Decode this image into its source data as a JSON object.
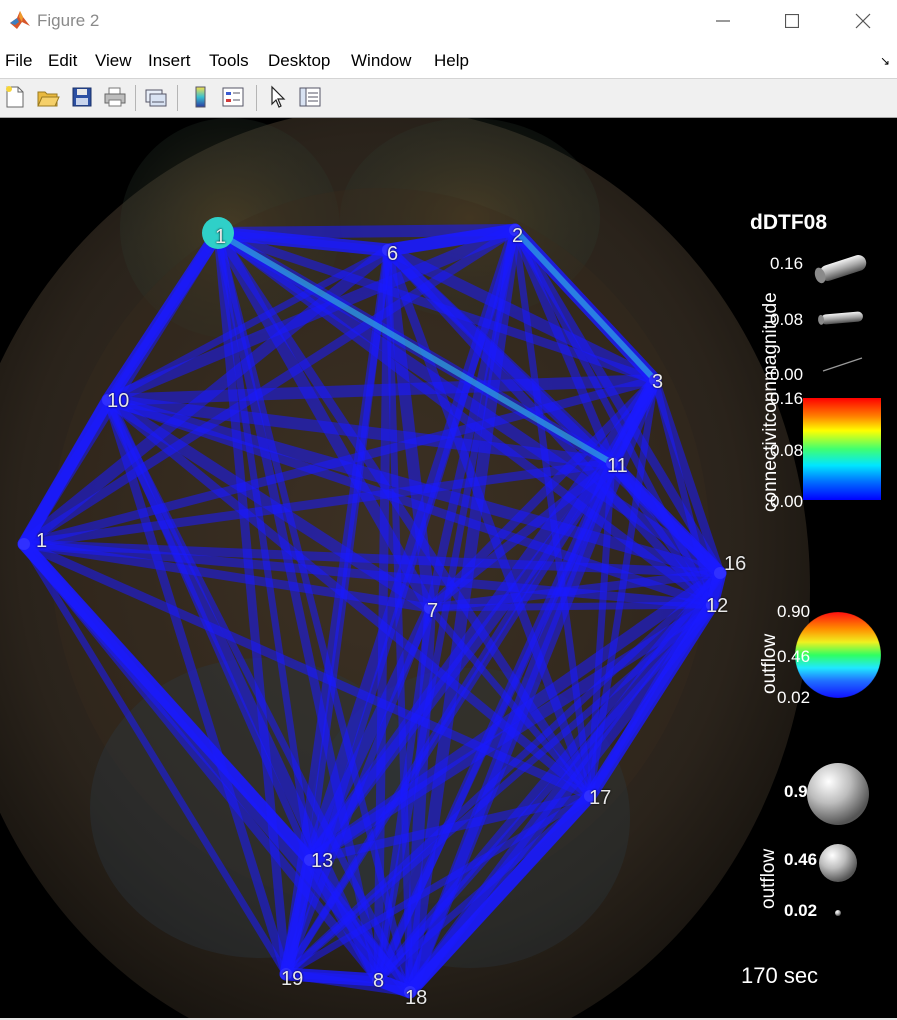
{
  "window": {
    "title": "Figure 2",
    "minimize_icon": "minimize-icon",
    "maximize_icon": "maximize-icon",
    "close_icon": "close-icon"
  },
  "menu": {
    "items": [
      "File",
      "Edit",
      "View",
      "Insert",
      "Tools",
      "Desktop",
      "Window",
      "Help"
    ]
  },
  "toolbar": {
    "tools": [
      "new-figure-icon",
      "open-file-icon",
      "save-icon",
      "print-icon",
      "link-plot-icon",
      "colorbar-icon",
      "legend-icon",
      "pointer-icon",
      "property-inspector-icon"
    ]
  },
  "figure": {
    "background": "#000000",
    "edge_color": "#1a1aff",
    "highlight_edge_color": "#2fa8e0",
    "highlight_node_color": "#2fd0c8",
    "nodes": [
      {
        "id": "1"
      },
      {
        "id": "2"
      },
      {
        "id": "3"
      },
      {
        "id": "6"
      },
      {
        "id": "7"
      },
      {
        "id": "8"
      },
      {
        "id": "10"
      },
      {
        "id": "11"
      },
      {
        "id": "12"
      },
      {
        "id": "13"
      },
      {
        "id": "16"
      },
      {
        "id": "17"
      },
      {
        "id": "18"
      },
      {
        "id": "1"
      },
      {
        "id": "19"
      }
    ]
  },
  "legend": {
    "title": "dDTF08",
    "conn_magnitude_label": "connectivitconnmagnitude",
    "magnitude_ticks": [
      "0.16",
      "0.08",
      "0.00"
    ],
    "conn_color_ticks": [
      "0.16",
      "0.08",
      "0.00"
    ],
    "outflow_color_label": "outflow",
    "outflow_color_ticks": [
      "0.90",
      "0.46",
      "0.02"
    ],
    "outflow_size_label": "outflow",
    "outflow_size_ticks": [
      "0.9",
      "0.46",
      "0.02"
    ]
  },
  "time": {
    "label": "170 sec"
  }
}
